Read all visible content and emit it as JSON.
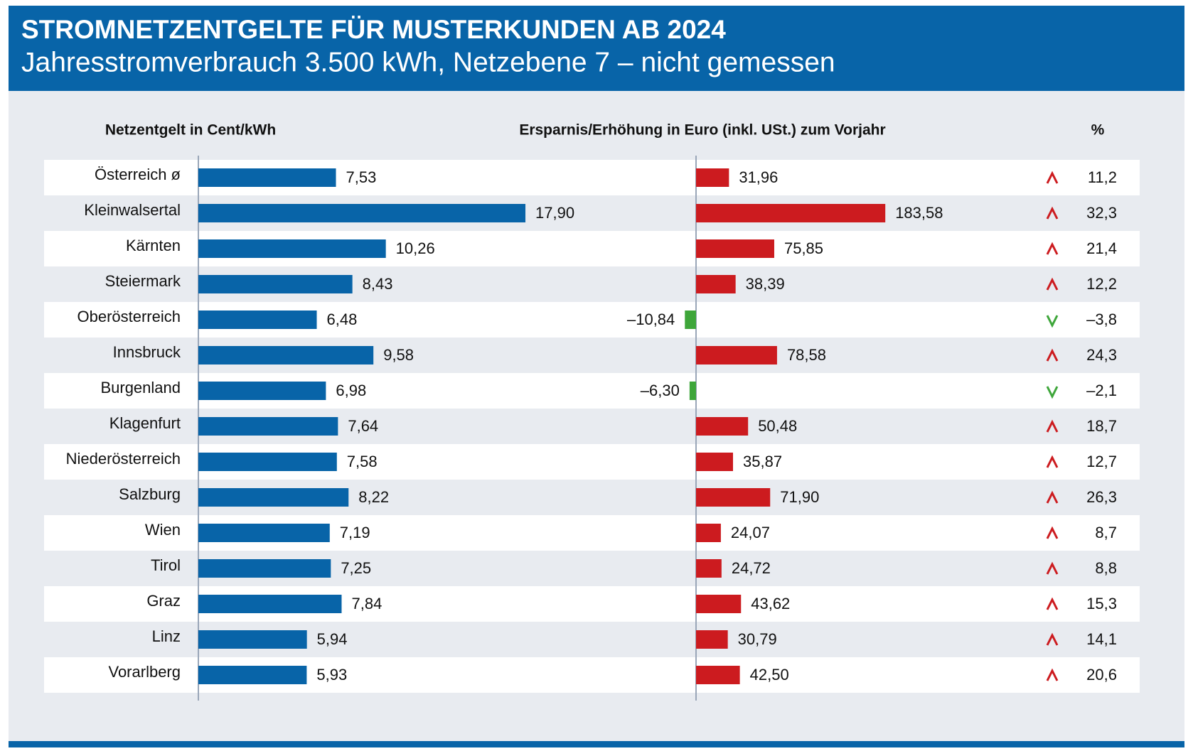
{
  "header": {
    "title": "STROMNETZENTGELTE FÜR MUSTERKUNDEN AB 2024",
    "subtitle": "Jahresstromverbrauch 3.500 kWh, Netzebene 7 – nicht gemessen"
  },
  "chart_data": [
    {
      "type": "bar",
      "orientation": "horizontal",
      "title": "Netzentgelt in Cent/kWh",
      "categories": [
        "Österreich ø",
        "Kleinwalsertal",
        "Kärnten",
        "Steiermark",
        "Oberösterreich",
        "Innsbruck",
        "Burgenland",
        "Klagenfurt",
        "Niederösterreich",
        "Salzburg",
        "Wien",
        "Tirol",
        "Graz",
        "Linz",
        "Vorarlberg"
      ],
      "values": [
        7.53,
        17.9,
        10.26,
        8.43,
        6.48,
        9.58,
        6.98,
        7.64,
        7.58,
        8.22,
        7.19,
        7.25,
        7.84,
        5.94,
        5.93
      ],
      "value_labels": [
        "7,53",
        "17,90",
        "10,26",
        "8,43",
        "6,48",
        "9,58",
        "6,98",
        "7,64",
        "7,58",
        "8,22",
        "7,19",
        "7,25",
        "7,84",
        "5,94",
        "5,93"
      ],
      "color": "#0864a8",
      "xlim": [
        0,
        20
      ]
    },
    {
      "type": "bar",
      "orientation": "horizontal",
      "title": "Ersparnis/Erhöhung in Euro (inkl. USt.) zum Vorjahr",
      "values": [
        31.96,
        183.58,
        75.85,
        38.39,
        -10.84,
        78.58,
        -6.3,
        50.48,
        35.87,
        71.9,
        24.07,
        24.72,
        43.62,
        30.79,
        42.5
      ],
      "value_labels": [
        "31,96",
        "183,58",
        "75,85",
        "38,39",
        "–10,84",
        "78,58",
        "–6,30",
        "50,48",
        "35,87",
        "71,90",
        "24,07",
        "24,72",
        "43,62",
        "30,79",
        "42,50"
      ],
      "color": "#cc1b1f",
      "negative_color": "#3ea63a",
      "xlim": [
        -40,
        260
      ]
    },
    {
      "type": "table",
      "title": "%",
      "values": [
        11.2,
        32.3,
        21.4,
        12.2,
        -3.8,
        24.3,
        -2.1,
        18.7,
        12.7,
        26.3,
        8.7,
        8.8,
        15.3,
        14.1,
        20.6
      ],
      "value_labels": [
        "11,2",
        "32,3",
        "21,4",
        "12,2",
        "–3,8",
        "24,3",
        "–2,1",
        "18,7",
        "12,7",
        "26,3",
        "8,7",
        "8,8",
        "15,3",
        "14,1",
        "20,6"
      ],
      "up_color": "#cc1b1f",
      "down_color": "#3ea63a"
    }
  ]
}
